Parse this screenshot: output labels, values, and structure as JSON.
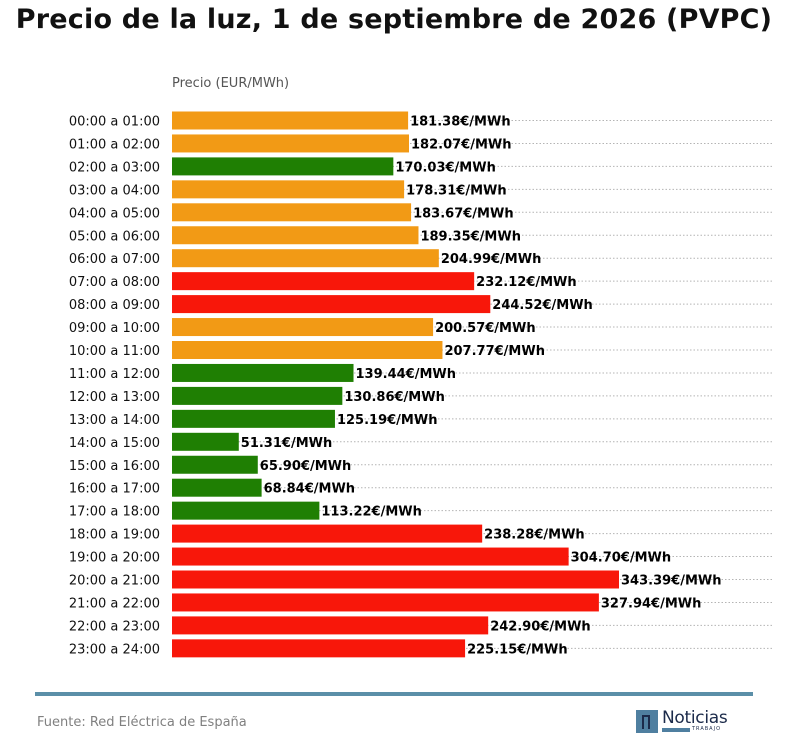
{
  "header": {
    "title": "Precio de la luz, 1 de septiembre de 2026 (PVPC)"
  },
  "footer": {
    "source": "Fuente: Red Eléctrica de España",
    "logo_text": "Noticias",
    "logo_subtext": "TRABAJO"
  },
  "colors": {
    "high": "#f8170a",
    "medium": "#f29a15",
    "low": "#1f7f03",
    "grid": "#b4b4b4",
    "divider": "#5b8fa8"
  },
  "chart_data": {
    "type": "bar",
    "orientation": "horizontal",
    "title": "Precio de la luz, 1 de septiembre de 2026 (PVPC)",
    "xlabel": "Precio (EUR/MWh)",
    "ylabel": "",
    "xlim": [
      0,
      360
    ],
    "grid": "horizontal dotted",
    "value_suffix": "€/MWh",
    "categories": [
      "00:00 a 01:00",
      "01:00 a 02:00",
      "02:00 a 03:00",
      "03:00 a 04:00",
      "04:00 a 05:00",
      "05:00 a 06:00",
      "06:00 a 07:00",
      "07:00 a 08:00",
      "08:00 a 09:00",
      "09:00 a 10:00",
      "10:00 a 11:00",
      "11:00 a 12:00",
      "12:00 a 13:00",
      "13:00 a 14:00",
      "14:00 a 15:00",
      "15:00 a 16:00",
      "16:00 a 17:00",
      "17:00 a 18:00",
      "18:00 a 19:00",
      "19:00 a 20:00",
      "20:00 a 21:00",
      "21:00 a 22:00",
      "22:00 a 23:00",
      "23:00 a 24:00"
    ],
    "values": [
      181.38,
      182.07,
      170.03,
      178.31,
      183.67,
      189.35,
      204.99,
      232.12,
      244.52,
      200.57,
      207.77,
      139.44,
      130.86,
      125.19,
      51.31,
      65.9,
      68.84,
      113.22,
      238.28,
      304.7,
      343.39,
      327.94,
      242.9,
      225.15
    ],
    "labels": [
      "181.38€/MWh",
      "182.07€/MWh",
      "170.03€/MWh",
      "178.31€/MWh",
      "183.67€/MWh",
      "189.35€/MWh",
      "204.99€/MWh",
      "232.12€/MWh",
      "244.52€/MWh",
      "200.57€/MWh",
      "207.77€/MWh",
      "139.44€/MWh",
      "130.86€/MWh",
      "125.19€/MWh",
      "51.31€/MWh",
      "65.90€/MWh",
      "68.84€/MWh",
      "113.22€/MWh",
      "238.28€/MWh",
      "304.70€/MWh",
      "343.39€/MWh",
      "327.94€/MWh",
      "242.90€/MWh",
      "225.15€/MWh"
    ],
    "levels": [
      "medium",
      "medium",
      "low",
      "medium",
      "medium",
      "medium",
      "medium",
      "high",
      "high",
      "medium",
      "medium",
      "low",
      "low",
      "low",
      "low",
      "low",
      "low",
      "low",
      "high",
      "high",
      "high",
      "high",
      "high",
      "high"
    ]
  }
}
